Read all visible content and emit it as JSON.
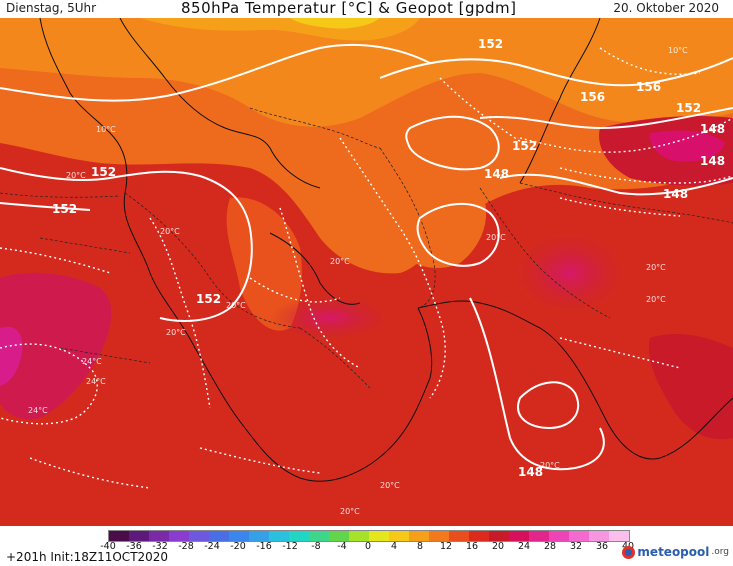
{
  "header": {
    "day_time": "Dienstag, 5Uhr",
    "title": "850hPa Temperatur [°C] & Geopot [gpdm]",
    "date": "20. Oktober 2020"
  },
  "footer": {
    "run_info": "+201h Init:18Z11OCT2020",
    "logo_text": "meteopool",
    "logo_tld": ".org"
  },
  "legend": {
    "tick_labels": [
      "-40",
      "-36",
      "-32",
      "-28",
      "-24",
      "-20",
      "-16",
      "-12",
      "-8",
      "-4",
      "0",
      "4",
      "8",
      "12",
      "16",
      "20",
      "24",
      "28",
      "32",
      "36",
      "40"
    ],
    "colors": [
      "#4a0d4a",
      "#5e1a7a",
      "#7a2aa8",
      "#8a3bd0",
      "#6e58e0",
      "#4a6ee6",
      "#3a86ee",
      "#33a0e8",
      "#2cc0e0",
      "#22d6c4",
      "#3ed68a",
      "#62d64a",
      "#a6e22a",
      "#e6e61e",
      "#f6c818",
      "#f6a01a",
      "#f27a1c",
      "#ea4e1c",
      "#dc2a1e",
      "#c81a28",
      "#d8105c",
      "#e2268c",
      "#ee44b8",
      "#f46ad0",
      "#f796e0",
      "#fbbfee"
    ]
  },
  "map": {
    "labels": {
      "iso_152_a": "152",
      "iso_152_b": "152",
      "iso_152_c": "152",
      "iso_152_d": "152",
      "iso_152_e": "152",
      "iso_152_f": "152",
      "iso_156_a": "156",
      "iso_156_b": "156",
      "iso_148_a": "148",
      "iso_148_b": "148",
      "iso_148_c": "148",
      "iso_148_d": "148",
      "iso_148_e": "148",
      "temp_a": "10°C",
      "temp_b": "20°C",
      "temp_c": "20°C",
      "temp_d": "20°C",
      "temp_e": "24°C",
      "temp_f": "24°C",
      "temp_g": "20°C",
      "temp_h": "20°C",
      "temp_i": "20°C",
      "temp_j": "20°C",
      "temp_k": "20°C",
      "temp_l": "24°C",
      "temp_m": "10°C",
      "temp_n": "20°C",
      "temp_o": "20°C",
      "temp_p": "20°C"
    }
  }
}
